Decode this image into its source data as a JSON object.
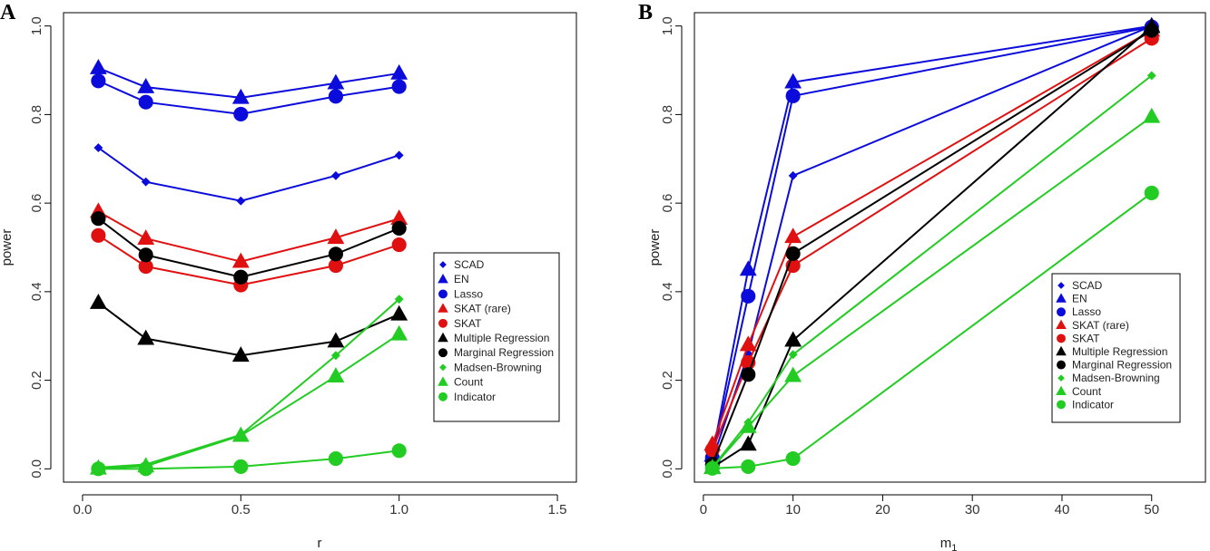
{
  "colors": {
    "blue": "#0b0bdc",
    "red": "#e11010",
    "black": "#000000",
    "green": "#22cc22"
  },
  "legend_entries": [
    {
      "name": "SCAD",
      "marker": "diamond",
      "color": "blue"
    },
    {
      "name": "EN",
      "marker": "triangle",
      "color": "blue"
    },
    {
      "name": "Lasso",
      "marker": "circle",
      "color": "blue"
    },
    {
      "name": "SKAT (rare)",
      "marker": "triangle",
      "color": "red"
    },
    {
      "name": "SKAT",
      "marker": "circle",
      "color": "red"
    },
    {
      "name": "Multiple Regression",
      "marker": "triangle",
      "color": "black"
    },
    {
      "name": "Marginal Regression",
      "marker": "circle",
      "color": "black"
    },
    {
      "name": "Madsen-Browning",
      "marker": "diamond",
      "color": "green"
    },
    {
      "name": "Count",
      "marker": "triangle",
      "color": "green"
    },
    {
      "name": "Indicator",
      "marker": "circle",
      "color": "green"
    }
  ],
  "chart_data": [
    {
      "panel": "A",
      "type": "line",
      "xlabel": "r",
      "ylabel": "power",
      "xlim": [
        -0.06,
        1.56
      ],
      "ylim": [
        -0.03,
        1.03
      ],
      "xticks": [
        0.0,
        0.5,
        1.0,
        1.5
      ],
      "xtick_labels": [
        "0.0",
        "0.5",
        "1.0",
        "1.5"
      ],
      "yticks": [
        0.0,
        0.2,
        0.4,
        0.6,
        0.8,
        1.0
      ],
      "ytick_labels": [
        "0.0",
        "0.2",
        "0.4",
        "0.6",
        "0.8",
        "1.0"
      ],
      "legend_position": "right",
      "x": [
        0.05,
        0.2,
        0.5,
        0.8,
        1.0
      ],
      "series": [
        {
          "name": "SCAD",
          "marker": "diamond",
          "color": "blue",
          "values": [
            0.725,
            0.648,
            0.605,
            0.662,
            0.708
          ]
        },
        {
          "name": "EN",
          "marker": "triangle",
          "color": "blue",
          "values": [
            0.905,
            0.862,
            0.838,
            0.871,
            0.893
          ]
        },
        {
          "name": "Lasso",
          "marker": "circle",
          "color": "blue",
          "values": [
            0.876,
            0.828,
            0.801,
            0.841,
            0.863
          ]
        },
        {
          "name": "SKAT (rare)",
          "marker": "triangle",
          "color": "red",
          "values": [
            0.581,
            0.52,
            0.468,
            0.522,
            0.565
          ]
        },
        {
          "name": "SKAT",
          "marker": "circle",
          "color": "red",
          "values": [
            0.527,
            0.457,
            0.415,
            0.459,
            0.506
          ]
        },
        {
          "name": "Multiple Regression",
          "marker": "triangle",
          "color": "black",
          "values": [
            0.375,
            0.294,
            0.256,
            0.288,
            0.349
          ]
        },
        {
          "name": "Marginal Regression",
          "marker": "circle",
          "color": "black",
          "values": [
            0.565,
            0.483,
            0.433,
            0.485,
            0.543
          ]
        },
        {
          "name": "Madsen-Browning",
          "marker": "diamond",
          "color": "green",
          "values": [
            0.003,
            0.01,
            0.077,
            0.256,
            0.383
          ]
        },
        {
          "name": "Count",
          "marker": "triangle",
          "color": "green",
          "values": [
            0.001,
            0.006,
            0.075,
            0.209,
            0.304
          ]
        },
        {
          "name": "Indicator",
          "marker": "circle",
          "color": "green",
          "values": [
            0.0,
            0.0,
            0.005,
            0.023,
            0.041
          ]
        }
      ]
    },
    {
      "panel": "B",
      "type": "line",
      "xlabel": "m",
      "xlabel_subscript": "1",
      "ylabel": "power",
      "xlim": [
        -1,
        56
      ],
      "ylim": [
        -0.03,
        1.03
      ],
      "xticks": [
        0,
        10,
        20,
        30,
        40,
        50
      ],
      "xtick_labels": [
        "0",
        "10",
        "20",
        "30",
        "40",
        "50"
      ],
      "yticks": [
        0.0,
        0.2,
        0.4,
        0.6,
        0.8,
        1.0
      ],
      "ytick_labels": [
        "0.0",
        "0.2",
        "0.4",
        "0.6",
        "0.8",
        "1.0"
      ],
      "legend_position": "right",
      "x": [
        1,
        5,
        10,
        50
      ],
      "series": [
        {
          "name": "SCAD",
          "marker": "diamond",
          "color": "blue",
          "values": [
            0.02,
            0.26,
            0.662,
            1.0
          ]
        },
        {
          "name": "EN",
          "marker": "triangle",
          "color": "blue",
          "values": [
            0.03,
            0.45,
            0.873,
            1.0
          ]
        },
        {
          "name": "Lasso",
          "marker": "circle",
          "color": "blue",
          "values": [
            0.025,
            0.39,
            0.842,
            0.998
          ]
        },
        {
          "name": "SKAT (rare)",
          "marker": "triangle",
          "color": "red",
          "values": [
            0.055,
            0.28,
            0.524,
            0.99
          ]
        },
        {
          "name": "SKAT",
          "marker": "circle",
          "color": "red",
          "values": [
            0.043,
            0.24,
            0.459,
            0.972
          ]
        },
        {
          "name": "Multiple Regression",
          "marker": "triangle",
          "color": "black",
          "values": [
            0.003,
            0.055,
            0.29,
            0.998
          ]
        },
        {
          "name": "Marginal Regression",
          "marker": "circle",
          "color": "black",
          "values": [
            0.01,
            0.213,
            0.486,
            0.99
          ]
        },
        {
          "name": "Madsen-Browning",
          "marker": "diamond",
          "color": "green",
          "values": [
            0.003,
            0.105,
            0.258,
            0.888
          ]
        },
        {
          "name": "Count",
          "marker": "triangle",
          "color": "green",
          "values": [
            0.002,
            0.095,
            0.21,
            0.795
          ]
        },
        {
          "name": "Indicator",
          "marker": "circle",
          "color": "green",
          "values": [
            0.001,
            0.005,
            0.023,
            0.623
          ]
        }
      ]
    }
  ]
}
